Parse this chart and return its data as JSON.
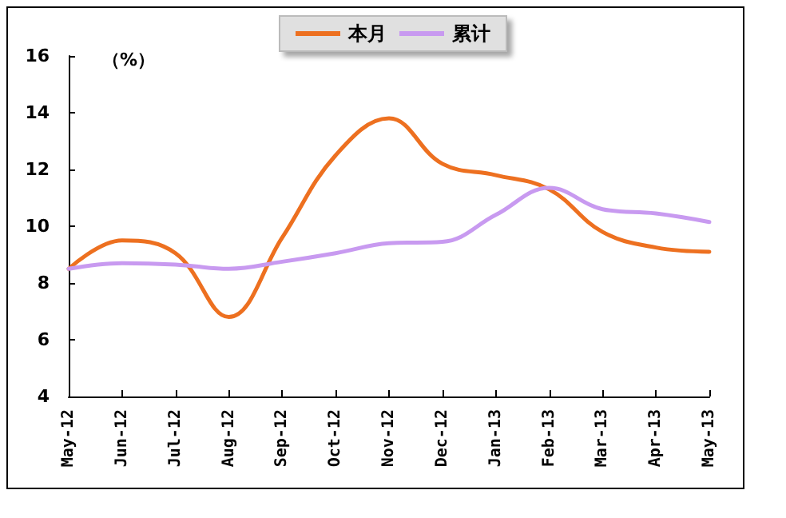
{
  "chart_data": {
    "type": "line",
    "categories": [
      "May-12",
      "Jun-12",
      "Jul-12",
      "Aug-12",
      "Sep-12",
      "Oct-12",
      "Nov-12",
      "Dec-12",
      "Jan-13",
      "Feb-13",
      "Mar-13",
      "Apr-13",
      "May-13"
    ],
    "series": [
      {
        "name": "本月",
        "color": "#ed7020",
        "values": [
          8.5,
          9.5,
          9.05,
          6.8,
          9.6,
          12.5,
          13.8,
          12.2,
          11.8,
          11.3,
          9.8,
          9.25,
          9.1
        ]
      },
      {
        "name": "累计",
        "color": "#c89af0",
        "values": [
          8.5,
          8.7,
          8.65,
          8.5,
          8.75,
          9.05,
          9.4,
          9.45,
          10.4,
          11.35,
          10.6,
          10.45,
          10.15
        ]
      }
    ],
    "ylim": [
      4,
      16
    ],
    "yticks": [
      4,
      6,
      8,
      10,
      12,
      14,
      16
    ],
    "annotations": [
      "（%）"
    ],
    "legend": "top",
    "grid": false,
    "marker": "none",
    "line_style": "solid"
  }
}
